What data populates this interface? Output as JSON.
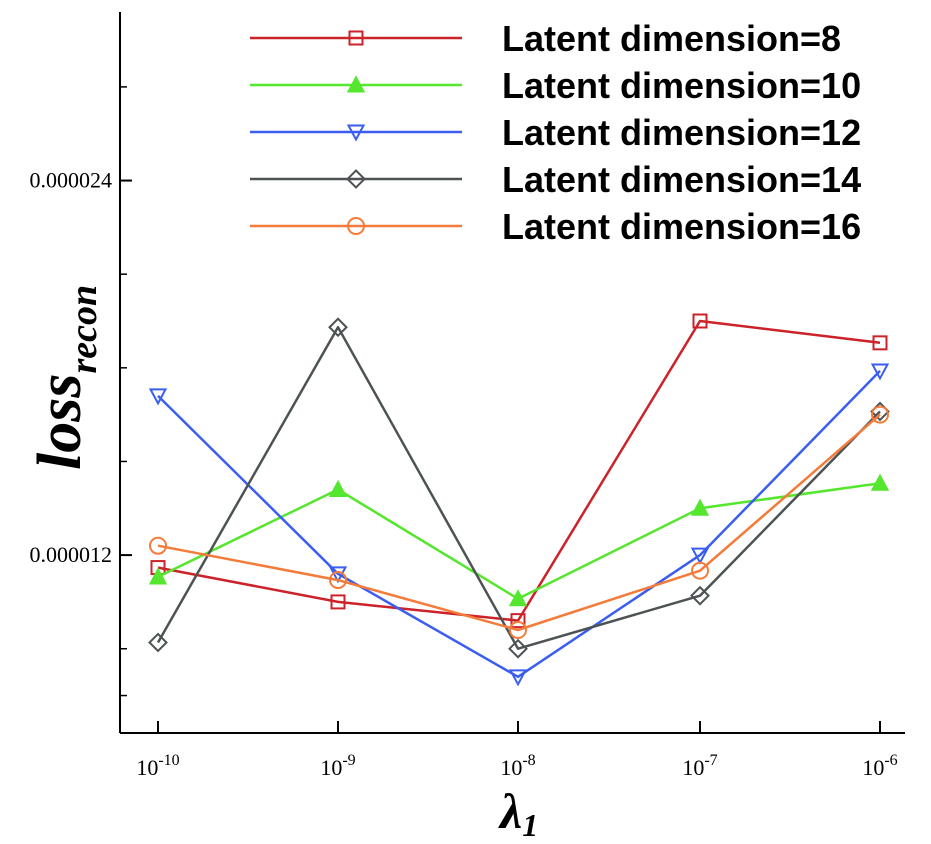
{
  "chart_data": {
    "type": "line",
    "x_scale": "log",
    "x": [
      1e-10,
      1e-09,
      1e-08,
      1e-07,
      1e-06
    ],
    "x_tick_labels": [
      {
        "base": "10",
        "exp": "-10"
      },
      {
        "base": "10",
        "exp": "-9"
      },
      {
        "base": "10",
        "exp": "-8"
      },
      {
        "base": "10",
        "exp": "-7"
      },
      {
        "base": "10",
        "exp": "-6"
      }
    ],
    "y_tick_labels": [
      "0.000024",
      "0.000012"
    ],
    "ylim": [
      6.3e-06,
      2.94e-05
    ],
    "y_major_ticks": [
      2.4e-05,
      1.2e-05
    ],
    "y_minor_ticks": [
      2.7e-05,
      2.1e-05,
      1.8e-05,
      1.5e-05,
      9e-06,
      7.5e-06
    ],
    "xlabel": {
      "main": "λ",
      "sub": "1"
    },
    "ylabel": {
      "main": "loss",
      "sub": "recon"
    },
    "legend_position": "top-right",
    "grid": false,
    "series": [
      {
        "name": "Latent dimension=8",
        "color": "#cc2229",
        "marker": "square",
        "values": [
          1.16e-05,
          1.05e-05,
          9.9e-06,
          1.95e-05,
          1.88e-05
        ]
      },
      {
        "name": "Latent dimension=10",
        "color": "#55e62e",
        "marker": "triangle-up",
        "values": [
          1.13e-05,
          1.41e-05,
          1.06e-05,
          1.35e-05,
          1.43e-05
        ]
      },
      {
        "name": "Latent dimension=12",
        "color": "#3b5ef0",
        "marker": "triangle-down",
        "values": [
          1.71e-05,
          1.14e-05,
          8.1e-06,
          1.2e-05,
          1.79e-05
        ]
      },
      {
        "name": "Latent dimension=14",
        "color": "#4d5354",
        "marker": "diamond",
        "values": [
          9.2e-06,
          1.93e-05,
          9e-06,
          1.07e-05,
          1.66e-05
        ]
      },
      {
        "name": "Latent dimension=16",
        "color": "#f47b3a",
        "marker": "circle",
        "values": [
          1.23e-05,
          1.12e-05,
          9.6e-06,
          1.15e-05,
          1.65e-05
        ]
      }
    ]
  }
}
